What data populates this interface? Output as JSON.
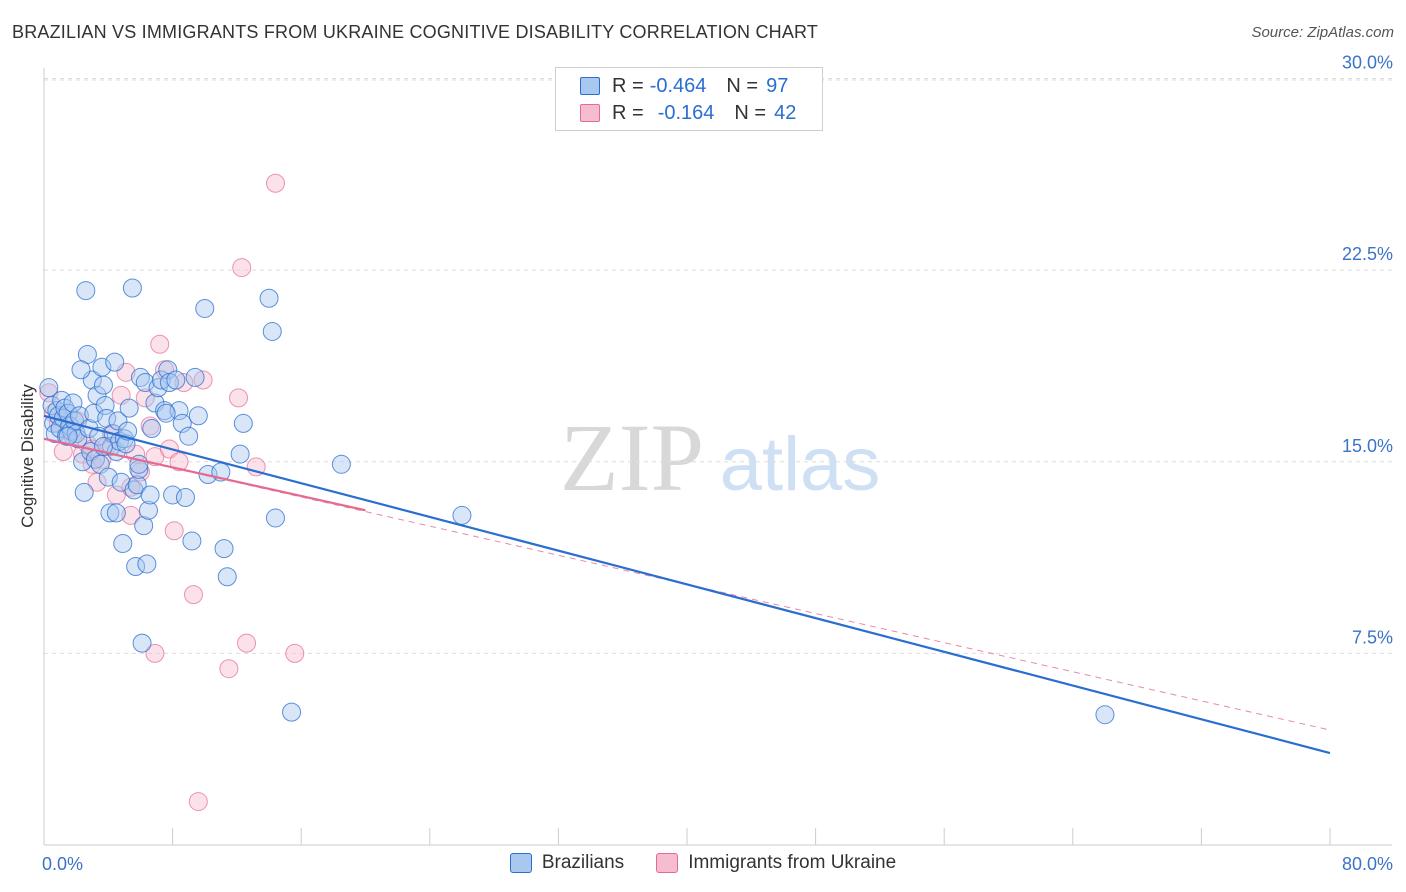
{
  "title": "BRAZILIAN VS IMMIGRANTS FROM UKRAINE COGNITIVE DISABILITY CORRELATION CHART",
  "source": "Source: ZipAtlas.com",
  "watermark": {
    "zip": "ZIP",
    "atlas": "atlas"
  },
  "legend_top": [
    {
      "r_label": "R = ",
      "r_value": "-0.464",
      "n_label": "N = ",
      "n_value": "97"
    },
    {
      "r_label": "R = ",
      "r_value": "-0.164",
      "n_label": "N = ",
      "n_value": "42"
    }
  ],
  "legend_bottom": [
    "Brazilians",
    "Immigrants from Ukraine"
  ],
  "colors": {
    "blue": "#2a6ed0",
    "blue_fill": "#a9c8f0",
    "pink": "#e46a93",
    "pink_fill": "#f6bcd0",
    "grid": "#dddddd",
    "tick_text": "#3b73c9"
  },
  "chart_data": {
    "type": "scatter",
    "xlabel": "",
    "ylabel": "Cognitive Disability",
    "xlim": [
      0,
      80
    ],
    "ylim": [
      0,
      30
    ],
    "x_tick_labels": [
      "0.0%",
      "80.0%"
    ],
    "y_ticks": [
      7.5,
      15.0,
      22.5,
      30.0
    ],
    "y_tick_labels": [
      "7.5%",
      "15.0%",
      "22.5%",
      "30.0%"
    ],
    "series": [
      {
        "name": "Brazilians",
        "R": -0.464,
        "N": 97,
        "trend": {
          "x": [
            0,
            80
          ],
          "y": [
            16.8,
            3.6
          ],
          "style": "solid"
        },
        "points": [
          [
            0.3,
            17.9
          ],
          [
            0.5,
            17.2
          ],
          [
            0.6,
            16.5
          ],
          [
            0.7,
            16.1
          ],
          [
            0.8,
            17.0
          ],
          [
            0.9,
            16.8
          ],
          [
            1.0,
            16.3
          ],
          [
            1.1,
            17.4
          ],
          [
            1.2,
            16.7
          ],
          [
            1.3,
            17.1
          ],
          [
            1.4,
            16.0
          ],
          [
            1.5,
            16.9
          ],
          [
            1.6,
            16.4
          ],
          [
            1.7,
            16.2
          ],
          [
            1.8,
            17.3
          ],
          [
            1.9,
            16.6
          ],
          [
            2.0,
            16.1
          ],
          [
            2.1,
            15.9
          ],
          [
            2.2,
            16.8
          ],
          [
            2.4,
            15.0
          ],
          [
            2.5,
            13.8
          ],
          [
            2.6,
            21.7
          ],
          [
            2.7,
            19.2
          ],
          [
            2.8,
            16.3
          ],
          [
            2.9,
            15.4
          ],
          [
            3.0,
            18.2
          ],
          [
            3.1,
            16.9
          ],
          [
            3.2,
            15.1
          ],
          [
            3.3,
            17.6
          ],
          [
            3.4,
            16.0
          ],
          [
            3.5,
            14.9
          ],
          [
            3.6,
            18.7
          ],
          [
            3.7,
            18.0
          ],
          [
            3.8,
            17.2
          ],
          [
            3.9,
            16.7
          ],
          [
            4.0,
            14.4
          ],
          [
            4.1,
            13.0
          ],
          [
            4.2,
            15.6
          ],
          [
            4.3,
            16.1
          ],
          [
            4.4,
            18.9
          ],
          [
            4.5,
            15.4
          ],
          [
            4.6,
            16.6
          ],
          [
            4.7,
            15.8
          ],
          [
            4.8,
            14.2
          ],
          [
            4.9,
            11.8
          ],
          [
            5.0,
            15.9
          ],
          [
            5.1,
            15.7
          ],
          [
            5.2,
            16.2
          ],
          [
            5.3,
            17.1
          ],
          [
            5.5,
            21.8
          ],
          [
            5.6,
            13.9
          ],
          [
            5.7,
            10.9
          ],
          [
            5.8,
            14.1
          ],
          [
            5.9,
            14.7
          ],
          [
            6.0,
            18.3
          ],
          [
            6.2,
            12.5
          ],
          [
            6.3,
            18.1
          ],
          [
            6.4,
            11.0
          ],
          [
            6.5,
            13.1
          ],
          [
            6.6,
            13.7
          ],
          [
            6.7,
            16.3
          ],
          [
            6.9,
            17.3
          ],
          [
            7.1,
            17.9
          ],
          [
            7.3,
            18.2
          ],
          [
            7.5,
            17.0
          ],
          [
            7.7,
            18.6
          ],
          [
            7.8,
            18.1
          ],
          [
            8.0,
            13.7
          ],
          [
            8.2,
            18.2
          ],
          [
            8.4,
            17.0
          ],
          [
            8.6,
            16.5
          ],
          [
            8.8,
            13.6
          ],
          [
            9.0,
            16.0
          ],
          [
            9.2,
            11.9
          ],
          [
            9.4,
            18.3
          ],
          [
            10.0,
            21.0
          ],
          [
            10.2,
            14.5
          ],
          [
            11.0,
            14.6
          ],
          [
            11.2,
            11.6
          ],
          [
            11.4,
            10.5
          ],
          [
            12.2,
            15.3
          ],
          [
            12.4,
            16.5
          ],
          [
            14.0,
            21.4
          ],
          [
            14.2,
            20.1
          ],
          [
            14.4,
            12.8
          ],
          [
            15.4,
            5.2
          ],
          [
            18.5,
            14.9
          ],
          [
            26.0,
            12.9
          ],
          [
            66.0,
            5.1
          ],
          [
            6.1,
            7.9
          ],
          [
            3.7,
            15.6
          ],
          [
            2.3,
            18.6
          ],
          [
            1.5,
            16.0
          ],
          [
            4.5,
            13.0
          ],
          [
            5.9,
            14.9
          ],
          [
            7.6,
            16.9
          ],
          [
            9.6,
            16.8
          ]
        ]
      },
      {
        "name": "Immigrants from Ukraine",
        "R": -0.164,
        "N": 42,
        "trend": {
          "x": [
            0,
            20
          ],
          "y": [
            15.9,
            13.1
          ],
          "style": "solid"
        },
        "trend_extended": {
          "x": [
            0,
            80
          ],
          "y": [
            15.9,
            4.5
          ],
          "style": "dashed"
        },
        "points": [
          [
            0.3,
            17.7
          ],
          [
            0.6,
            16.9
          ],
          [
            0.9,
            16.5
          ],
          [
            1.2,
            15.4
          ],
          [
            1.5,
            16.2
          ],
          [
            1.8,
            16.0
          ],
          [
            2.1,
            16.6
          ],
          [
            2.4,
            15.3
          ],
          [
            2.7,
            15.7
          ],
          [
            3.0,
            14.9
          ],
          [
            3.3,
            14.2
          ],
          [
            3.6,
            15.1
          ],
          [
            3.9,
            15.6
          ],
          [
            4.2,
            16.1
          ],
          [
            4.5,
            13.7
          ],
          [
            4.8,
            17.6
          ],
          [
            5.1,
            18.5
          ],
          [
            5.4,
            14.0
          ],
          [
            5.7,
            15.3
          ],
          [
            6.0,
            14.6
          ],
          [
            6.3,
            17.5
          ],
          [
            6.6,
            16.4
          ],
          [
            6.9,
            15.2
          ],
          [
            7.2,
            19.6
          ],
          [
            7.5,
            18.6
          ],
          [
            7.8,
            15.5
          ],
          [
            8.1,
            12.3
          ],
          [
            8.4,
            15.0
          ],
          [
            8.7,
            18.1
          ],
          [
            9.3,
            9.8
          ],
          [
            9.9,
            18.2
          ],
          [
            11.5,
            6.9
          ],
          [
            12.1,
            17.5
          ],
          [
            12.3,
            22.6
          ],
          [
            12.6,
            7.9
          ],
          [
            13.2,
            14.8
          ],
          [
            14.4,
            25.9
          ],
          [
            15.6,
            7.5
          ],
          [
            6.9,
            7.5
          ],
          [
            9.6,
            1.7
          ],
          [
            5.4,
            12.9
          ],
          [
            3.0,
            15.5
          ]
        ]
      }
    ]
  }
}
